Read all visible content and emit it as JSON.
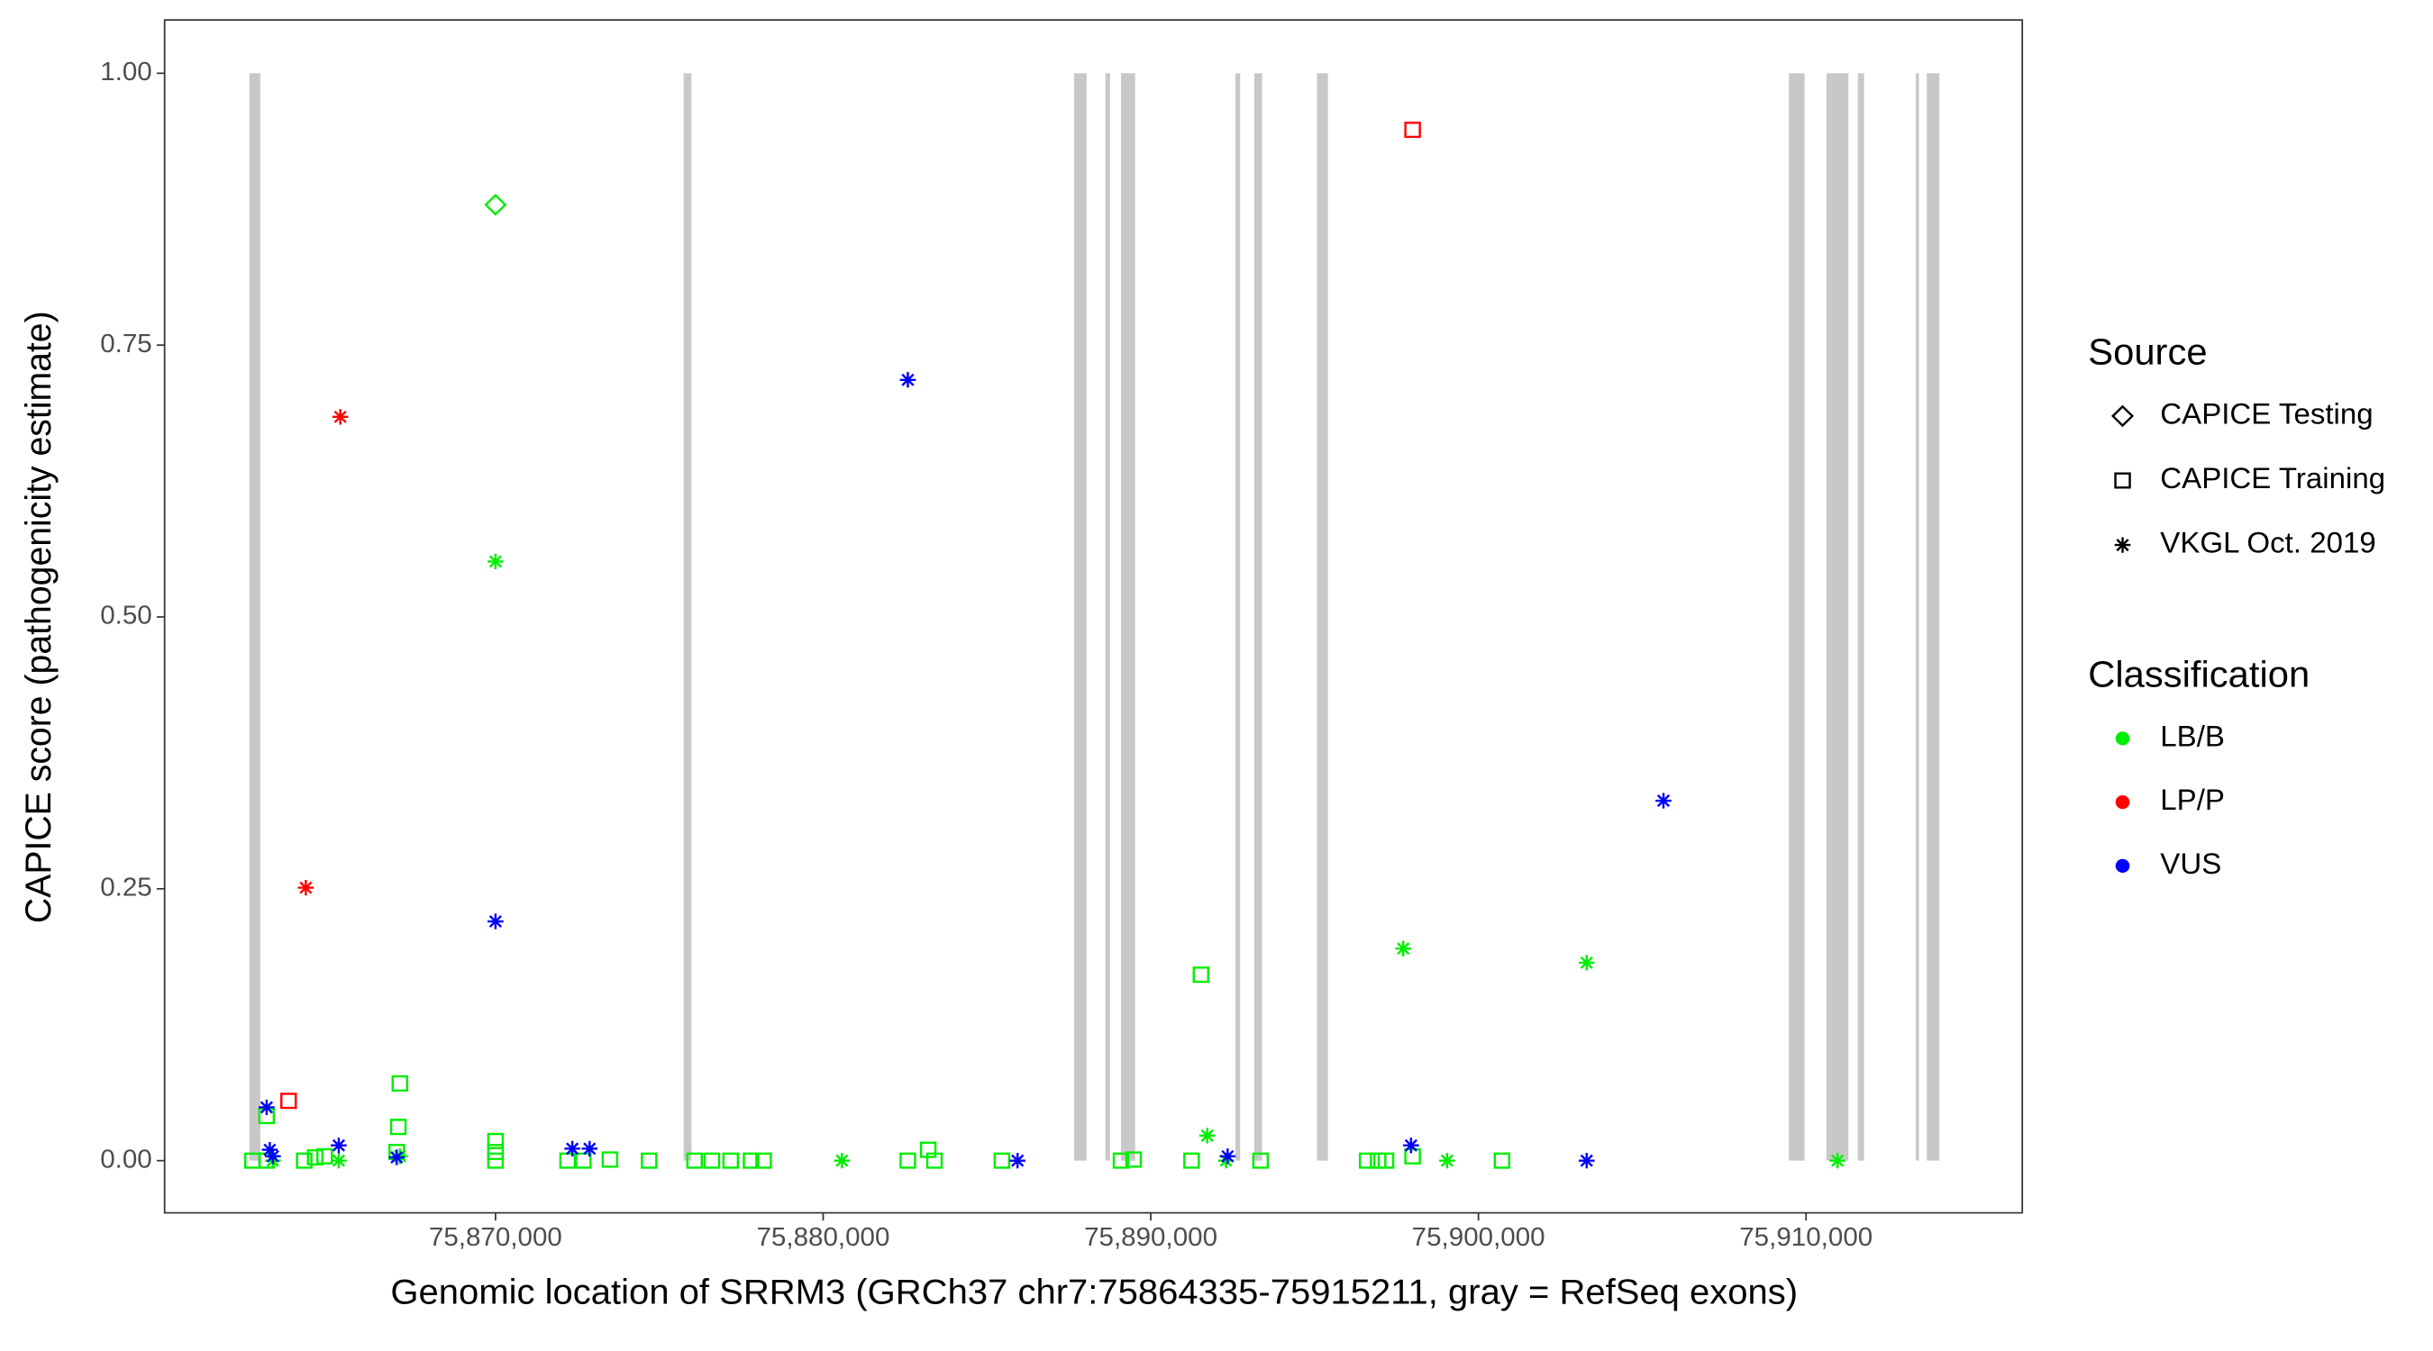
{
  "chart_data": {
    "type": "scatter",
    "xlabel": "Genomic location of SRRM3 (GRCh37 chr7:75864335-75915211, gray = RefSeq exons)",
    "ylabel": "CAPICE score (pathogenicity estimate)",
    "xlim": [
      75859900,
      75916600
    ],
    "ylim": [
      -0.048,
      1.049
    ],
    "xticks": [
      {
        "value": 75870000,
        "label": "75,870,000"
      },
      {
        "value": 75880000,
        "label": "75,880,000"
      },
      {
        "value": 75890000,
        "label": "75,890,000"
      },
      {
        "value": 75900000,
        "label": "75,900,000"
      },
      {
        "value": 75910000,
        "label": "75,910,000"
      }
    ],
    "yticks": [
      {
        "value": 0,
        "label": "0.00"
      },
      {
        "value": 0.25,
        "label": "0.25"
      },
      {
        "value": 0.5,
        "label": "0.50"
      },
      {
        "value": 0.75,
        "label": "0.75"
      },
      {
        "value": 1,
        "label": "1.00"
      }
    ],
    "exon_color": "#c8c8c8",
    "exon_range": [
      0,
      1
    ],
    "exons": [
      [
        75862488,
        75862823
      ],
      [
        75875742,
        75875981
      ],
      [
        75887657,
        75888040
      ],
      [
        75888614,
        75888757
      ],
      [
        75889092,
        75889523
      ],
      [
        75892585,
        75892729
      ],
      [
        75893159,
        75893398
      ],
      [
        75895073,
        75895407
      ],
      [
        75909476,
        75909955
      ],
      [
        75910624,
        75911294
      ],
      [
        75911581,
        75911772
      ],
      [
        75913352,
        75913447
      ],
      [
        75913687,
        75914070
      ]
    ],
    "shape_legend": {
      "title": "Source",
      "items": [
        {
          "label": "CAPICE Testing",
          "shape": "diamond"
        },
        {
          "label": "CAPICE Training",
          "shape": "square"
        },
        {
          "label": "VKGL Oct. 2019",
          "shape": "asterisk"
        }
      ]
    },
    "color_legend": {
      "title": "Classification",
      "items": [
        {
          "label": "LB/B",
          "color": "#00ee00"
        },
        {
          "label": "LP/P",
          "color": "#ff0000"
        },
        {
          "label": "VUS",
          "color": "#0000ff"
        }
      ]
    },
    "series": [
      {
        "shape": "diamond",
        "color": "#00ee00",
        "x": [
          75870000
        ],
        "y": [
          0.879
        ]
      },
      {
        "shape": "square",
        "color": "#ff0000",
        "x": [
          75897992,
          75863684
        ],
        "y": [
          0.948,
          0.055
        ]
      },
      {
        "shape": "square",
        "color": "#00ee00",
        "x": [
          75891533,
          75867081,
          75867033,
          75870000,
          75870000,
          75870000,
          75863014,
          75862583,
          75863014,
          75864162,
          75864497,
          75864784,
          75866985,
          75872201,
          75872680,
          75873493,
          75874689,
          75876077,
          75876603,
          75877178,
          75877800,
          75878182,
          75882585,
          75883207,
          75883398,
          75885456,
          75889092,
          75889475,
          75891245,
          75893351,
          75896605,
          75896940,
          75897179,
          75897992,
          75900720
        ],
        "y": [
          0.171,
          0.071,
          0.031,
          0.018,
          0.008,
          0,
          0.041,
          0,
          0,
          0,
          0.003,
          0.004,
          0.008,
          0,
          0,
          0.001,
          0,
          0,
          0,
          0,
          0,
          0,
          0,
          0.01,
          0,
          0,
          0,
          0.001,
          0,
          0,
          0,
          0,
          0,
          0.004,
          0
        ]
      },
      {
        "shape": "asterisk",
        "color": "#00ee00",
        "x": [
          75870000,
          75897705,
          75903304,
          75891724,
          75880575,
          75910961,
          75899045,
          75865215,
          75863205,
          75867081,
          75892298
        ],
        "y": [
          0.551,
          0.195,
          0.182,
          0.023,
          0,
          0,
          0,
          0,
          0,
          0.004,
          0
        ]
      },
      {
        "shape": "asterisk",
        "color": "#ff0000",
        "x": [
          75865263,
          75864210
        ],
        "y": [
          0.684,
          0.251
        ]
      },
      {
        "shape": "asterisk",
        "color": "#0000ff",
        "x": [
          75882585,
          75870000,
          75905648,
          75863014,
          75863110,
          75863205,
          75865215,
          75866985,
          75872345,
          75872871,
          75885934,
          75892346,
          75897944,
          75903304
        ],
        "y": [
          0.718,
          0.22,
          0.331,
          0.049,
          0.01,
          0.004,
          0.014,
          0.003,
          0.011,
          0.011,
          0,
          0.004,
          0.014,
          0
        ]
      }
    ]
  }
}
